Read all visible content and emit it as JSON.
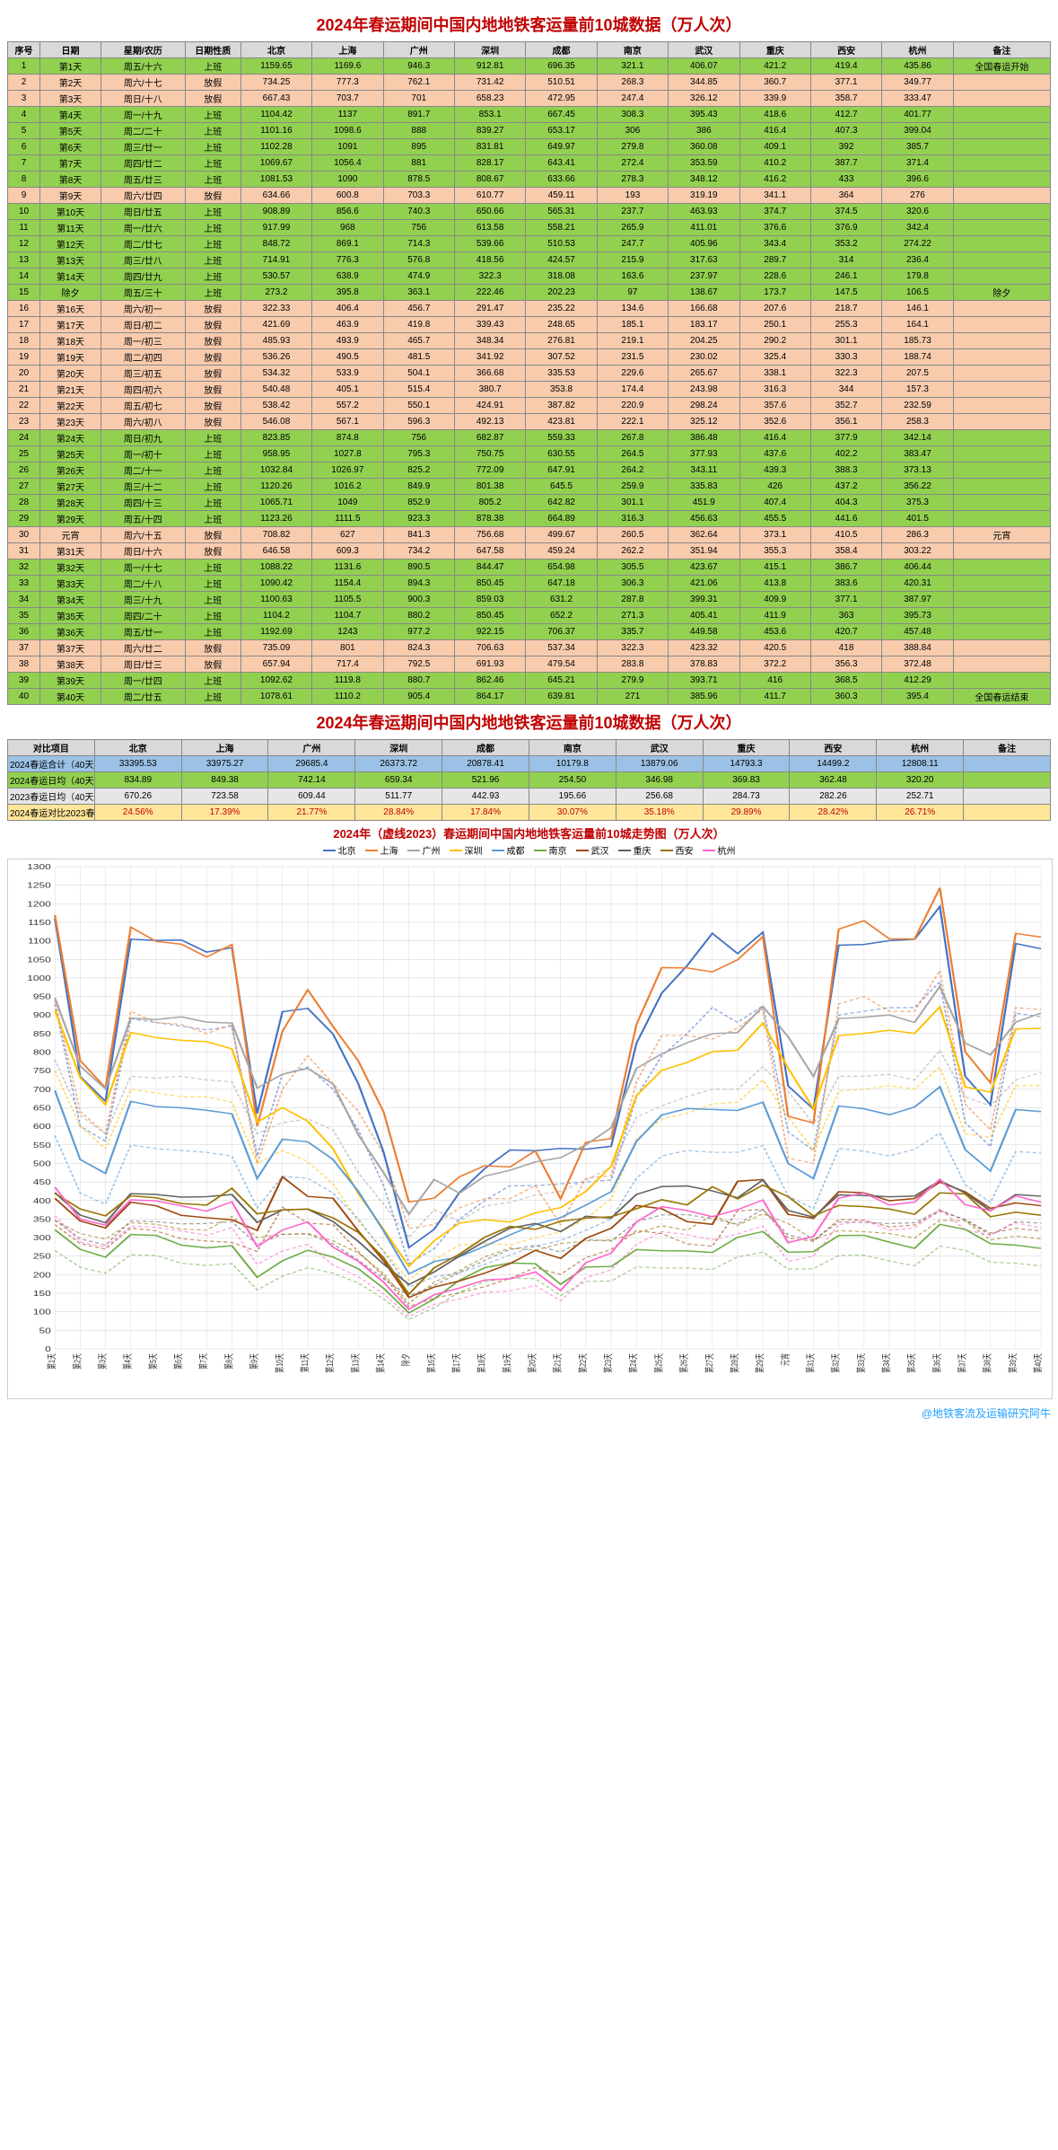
{
  "title_main": "2024年春运期间中国内地地铁客运量前10城数据（万人次）",
  "title_summary": "2024年春运期间中国内地地铁客运量前10城数据（万人次）",
  "chart_title": "2024年（虚线2023）春运期间中国内地地铁客运量前10城走势图（万人次）",
  "credit": "@地铁客流及运输研究阿牛",
  "headers": {
    "seq": "序号",
    "date": "日期",
    "week": "星期/农历",
    "type": "日期性质",
    "cities": [
      "北京",
      "上海",
      "广州",
      "深圳",
      "成都",
      "南京",
      "武汉",
      "重庆",
      "西安",
      "杭州"
    ],
    "note": "备注"
  },
  "row_colors": {
    "work": "row-green",
    "holiday": "row-pink",
    "total": "row-blue",
    "avg": "row-green",
    "avg23": "row-gray",
    "inc": "row-yellow"
  },
  "rows": [
    {
      "seq": 1,
      "date": "第1天",
      "week": "周五/十六",
      "type": "上班",
      "v": [
        1159.65,
        1169.6,
        946.3,
        912.81,
        696.35,
        321.1,
        406.07,
        421.2,
        419.4,
        435.86
      ],
      "note": "全国春运开始",
      "c": "work"
    },
    {
      "seq": 2,
      "date": "第2天",
      "week": "周六/十七",
      "type": "放假",
      "v": [
        734.25,
        777.3,
        762.1,
        731.42,
        510.51,
        268.3,
        344.85,
        360.7,
        377.1,
        349.77
      ],
      "c": "holiday"
    },
    {
      "seq": 3,
      "date": "第3天",
      "week": "周日/十八",
      "type": "放假",
      "v": [
        667.43,
        703.7,
        701,
        658.23,
        472.95,
        247.4,
        326.12,
        339.9,
        358.7,
        333.47
      ],
      "c": "holiday"
    },
    {
      "seq": 4,
      "date": "第4天",
      "week": "周一/十九",
      "type": "上班",
      "v": [
        1104.42,
        1137,
        891.7,
        853.1,
        667.45,
        308.3,
        395.43,
        418.6,
        412.7,
        401.77
      ],
      "c": "work"
    },
    {
      "seq": 5,
      "date": "第5天",
      "week": "周二/二十",
      "type": "上班",
      "v": [
        1101.16,
        1098.6,
        888.0,
        839.27,
        653.17,
        306,
        386,
        416.4,
        407.3,
        399.04
      ],
      "c": "work"
    },
    {
      "seq": 6,
      "date": "第6天",
      "week": "周三/廿一",
      "type": "上班",
      "v": [
        1102.28,
        1091,
        895,
        831.81,
        649.97,
        279.8,
        360.08,
        409.1,
        392,
        385.7
      ],
      "c": "work"
    },
    {
      "seq": 7,
      "date": "第7天",
      "week": "周四/廿二",
      "type": "上班",
      "v": [
        1069.67,
        1056.4,
        881,
        828.17,
        643.41,
        272.4,
        353.59,
        410.2,
        387.7,
        371.4
      ],
      "c": "work"
    },
    {
      "seq": 8,
      "date": "第8天",
      "week": "周五/廿三",
      "type": "上班",
      "v": [
        1081.53,
        1090,
        878.5,
        808.67,
        633.66,
        278.3,
        348.12,
        416.2,
        433,
        396.6
      ],
      "c": "work"
    },
    {
      "seq": 9,
      "date": "第9天",
      "week": "周六/廿四",
      "type": "放假",
      "v": [
        634.66,
        600.8,
        703.3,
        610.77,
        459.11,
        193,
        319.19,
        341.1,
        364,
        276
      ],
      "c": "holiday"
    },
    {
      "seq": 10,
      "date": "第10天",
      "week": "周日/廿五",
      "type": "上班",
      "v": [
        908.89,
        856.6,
        740.3,
        650.66,
        565.31,
        237.7,
        463.93,
        374.7,
        374.5,
        320.6
      ],
      "c": "work"
    },
    {
      "seq": 11,
      "date": "第11天",
      "week": "周一/廿六",
      "type": "上班",
      "v": [
        917.99,
        968,
        756,
        613.58,
        558.21,
        265.9,
        411.01,
        376.6,
        376.9,
        342.4
      ],
      "c": "work"
    },
    {
      "seq": 12,
      "date": "第12天",
      "week": "周二/廿七",
      "type": "上班",
      "v": [
        848.72,
        869.1,
        714.3,
        539.66,
        510.53,
        247.7,
        405.96,
        343.4,
        353.2,
        274.22
      ],
      "c": "work"
    },
    {
      "seq": 13,
      "date": "第13天",
      "week": "周三/廿八",
      "type": "上班",
      "v": [
        714.91,
        776.3,
        576.8,
        418.56,
        424.57,
        215.9,
        317.63,
        289.7,
        314,
        236.4
      ],
      "c": "work"
    },
    {
      "seq": 14,
      "date": "第14天",
      "week": "周四/廿九",
      "type": "上班",
      "v": [
        530.57,
        638.9,
        474.9,
        322.3,
        318.08,
        163.6,
        237.97,
        228.6,
        246.1,
        179.8
      ],
      "c": "work"
    },
    {
      "seq": 15,
      "date": "除夕",
      "week": "周五/三十",
      "type": "上班",
      "v": [
        273.2,
        395.8,
        363.1,
        222.46,
        202.23,
        97,
        138.67,
        173.7,
        147.5,
        106.5
      ],
      "note": "除夕",
      "c": "work"
    },
    {
      "seq": 16,
      "date": "第16天",
      "week": "周六/初一",
      "type": "放假",
      "v": [
        322.33,
        406.4,
        456.7,
        291.47,
        235.22,
        134.6,
        166.68,
        207.6,
        218.7,
        146.1
      ],
      "c": "holiday"
    },
    {
      "seq": 17,
      "date": "第17天",
      "week": "周日/初二",
      "type": "放假",
      "v": [
        421.69,
        463.9,
        419.8,
        339.43,
        248.65,
        185.1,
        183.17,
        250.1,
        255.3,
        164.1
      ],
      "c": "holiday"
    },
    {
      "seq": 18,
      "date": "第18天",
      "week": "周一/初三",
      "type": "放假",
      "v": [
        485.93,
        493.9,
        465.7,
        348.34,
        276.81,
        219.1,
        204.25,
        290.2,
        301.1,
        185.73
      ],
      "c": "holiday"
    },
    {
      "seq": 19,
      "date": "第19天",
      "week": "周二/初四",
      "type": "放假",
      "v": [
        536.26,
        490.5,
        481.5,
        341.92,
        307.52,
        231.5,
        230.02,
        325.4,
        330.3,
        188.74
      ],
      "c": "holiday"
    },
    {
      "seq": 20,
      "date": "第20天",
      "week": "周三/初五",
      "type": "放假",
      "v": [
        534.32,
        533.9,
        504.1,
        366.68,
        335.53,
        229.6,
        265.67,
        338.1,
        322.3,
        207.5
      ],
      "c": "holiday"
    },
    {
      "seq": 21,
      "date": "第21天",
      "week": "周四/初六",
      "type": "放假",
      "v": [
        540.48,
        405.1,
        515.4,
        380.7,
        353.8,
        174.4,
        243.98,
        316.3,
        344,
        157.3
      ],
      "c": "holiday"
    },
    {
      "seq": 22,
      "date": "第22天",
      "week": "周五/初七",
      "type": "放假",
      "v": [
        538.42,
        557.2,
        550.1,
        424.91,
        387.82,
        220.9,
        298.24,
        357.6,
        352.7,
        232.59
      ],
      "c": "holiday"
    },
    {
      "seq": 23,
      "date": "第23天",
      "week": "周六/初八",
      "type": "放假",
      "v": [
        546.08,
        567.1,
        596.3,
        492.13,
        423.81,
        222.1,
        325.12,
        352.6,
        356.1,
        258.3
      ],
      "c": "holiday"
    },
    {
      "seq": 24,
      "date": "第24天",
      "week": "周日/初九",
      "type": "上班",
      "v": [
        823.85,
        874.8,
        756,
        682.87,
        559.33,
        267.8,
        386.48,
        416.4,
        377.9,
        342.14
      ],
      "c": "work"
    },
    {
      "seq": 25,
      "date": "第25天",
      "week": "周一/初十",
      "type": "上班",
      "v": [
        958.95,
        1027.8,
        795.3,
        750.75,
        630.55,
        264.5,
        377.93,
        437.6,
        402.2,
        383.47
      ],
      "c": "work"
    },
    {
      "seq": 26,
      "date": "第26天",
      "week": "周二/十一",
      "type": "上班",
      "v": [
        1032.84,
        1026.97,
        825.2,
        772.09,
        647.91,
        264.2,
        343.11,
        439.3,
        388.3,
        373.13
      ],
      "c": "work"
    },
    {
      "seq": 27,
      "date": "第27天",
      "week": "周三/十二",
      "type": "上班",
      "v": [
        1120.26,
        1016.2,
        849.9,
        801.38,
        645.5,
        259.9,
        335.83,
        426,
        437.2,
        356.22
      ],
      "c": "work"
    },
    {
      "seq": 28,
      "date": "第28天",
      "week": "周四/十三",
      "type": "上班",
      "v": [
        1065.71,
        1049,
        852.9,
        805.2,
        642.82,
        301.1,
        451.9,
        407.4,
        404.3,
        375.3
      ],
      "c": "work"
    },
    {
      "seq": 29,
      "date": "第29天",
      "week": "周五/十四",
      "type": "上班",
      "v": [
        1123.26,
        1111.5,
        923.3,
        878.38,
        664.89,
        316.3,
        456.63,
        455.5,
        441.6,
        401.5
      ],
      "c": "work"
    },
    {
      "seq": 30,
      "date": "元宵",
      "week": "周六/十五",
      "type": "放假",
      "v": [
        708.82,
        627,
        841.3,
        756.68,
        499.67,
        260.5,
        362.64,
        373.1,
        410.5,
        286.3
      ],
      "note": "元宵",
      "c": "holiday"
    },
    {
      "seq": 31,
      "date": "第31天",
      "week": "周日/十六",
      "type": "放假",
      "v": [
        646.58,
        609.3,
        734.2,
        647.58,
        459.24,
        262.2,
        351.94,
        355.3,
        358.4,
        303.22
      ],
      "c": "holiday"
    },
    {
      "seq": 32,
      "date": "第32天",
      "week": "周一/十七",
      "type": "上班",
      "v": [
        1088.22,
        1131.6,
        890.5,
        844.47,
        654.98,
        305.5,
        423.67,
        415.1,
        386.7,
        406.44
      ],
      "c": "work"
    },
    {
      "seq": 33,
      "date": "第33天",
      "week": "周二/十八",
      "type": "上班",
      "v": [
        1090.42,
        1154.4,
        894.3,
        850.45,
        647.18,
        306.3,
        421.06,
        413.8,
        383.6,
        420.31
      ],
      "c": "work"
    },
    {
      "seq": 34,
      "date": "第34天",
      "week": "周三/十九",
      "type": "上班",
      "v": [
        1100.63,
        1105.5,
        900.3,
        859.03,
        631.2,
        287.8,
        399.31,
        409.9,
        377.1,
        387.97
      ],
      "c": "work"
    },
    {
      "seq": 35,
      "date": "第35天",
      "week": "周四/二十",
      "type": "上班",
      "v": [
        1104.2,
        1104.7,
        880.2,
        850.45,
        652.2,
        271.3,
        405.41,
        411.9,
        363,
        395.73
      ],
      "c": "work"
    },
    {
      "seq": 36,
      "date": "第36天",
      "week": "周五/廿一",
      "type": "上班",
      "v": [
        1192.69,
        1243,
        977.2,
        922.15,
        706.37,
        335.7,
        449.58,
        453.6,
        420.7,
        457.48
      ],
      "c": "work"
    },
    {
      "seq": 37,
      "date": "第37天",
      "week": "周六/廿二",
      "type": "放假",
      "v": [
        735.09,
        801,
        824.3,
        706.63,
        537.34,
        322.3,
        423.32,
        420.5,
        418,
        388.84
      ],
      "c": "holiday"
    },
    {
      "seq": 38,
      "date": "第38天",
      "week": "周日/廿三",
      "type": "放假",
      "v": [
        657.94,
        717.4,
        792.5,
        691.93,
        479.54,
        283.8,
        378.83,
        372.2,
        356.3,
        372.48
      ],
      "c": "holiday"
    },
    {
      "seq": 39,
      "date": "第39天",
      "week": "周一/廿四",
      "type": "上班",
      "v": [
        1092.62,
        1119.8,
        880.7,
        862.46,
        645.21,
        279.9,
        393.71,
        416,
        368.5,
        412.29
      ],
      "c": "work"
    },
    {
      "seq": 40,
      "date": "第40天",
      "week": "周二/廿五",
      "type": "上班",
      "v": [
        1078.61,
        1110.2,
        905.4,
        864.17,
        639.81,
        271,
        385.96,
        411.7,
        360.3,
        395.4
      ],
      "note": "全国春运结束",
      "c": "work"
    }
  ],
  "summary": {
    "label_col": "对比项目",
    "rows": [
      {
        "label": "2024春运合计（40天）",
        "v": [
          "33395.53",
          "33975.27",
          "29685.4",
          "26373.72",
          "20878.41",
          "10179.8",
          "13879.06",
          "14793.3",
          "14499.2",
          "12808.11"
        ],
        "c": "total"
      },
      {
        "label": "2024春运日均（40天）",
        "v": [
          "834.89",
          "849.38",
          "742.14",
          "659.34",
          "521.96",
          "254.50",
          "346.98",
          "369.83",
          "362.48",
          "320.20"
        ],
        "c": "avg"
      },
      {
        "label": "2023春运日均（40天）",
        "v": [
          "670.26",
          "723.58",
          "609.44",
          "511.77",
          "442.93",
          "195.66",
          "256.68",
          "284.73",
          "282.26",
          "252.71"
        ],
        "c": "avg23"
      },
      {
        "label": "2024春运对比2023春运增幅（40天）",
        "v": [
          "24.56%",
          "17.39%",
          "21.77%",
          "28.84%",
          "17.84%",
          "30.07%",
          "35.18%",
          "29.89%",
          "28.42%",
          "26.71%"
        ],
        "c": "inc"
      }
    ]
  },
  "chart": {
    "ylim": [
      0,
      1300
    ],
    "ytick_step": 50,
    "grid_color": "#d0d0d0",
    "background": "#ffffff",
    "line_width": 1.5,
    "colors": {
      "北京": "#4472c4",
      "上海": "#ed7d31",
      "广州": "#a5a5a5",
      "深圳": "#ffc000",
      "成都": "#5b9bd5",
      "南京": "#70ad47",
      "武汉": "#9e480e",
      "重庆": "#636363",
      "西安": "#997300",
      "杭州": "#ff66cc"
    },
    "series_2023": {
      "北京": [
        930,
        600,
        560,
        890,
        880,
        870,
        860,
        870,
        520,
        740,
        760,
        700,
        590,
        440,
        230,
        270,
        350,
        400,
        440,
        440,
        445,
        450,
        455,
        680,
        790,
        850,
        920,
        880,
        925,
        585,
        535,
        900,
        910,
        920,
        920,
        990,
        610,
        545,
        905,
        895
      ],
      "上海": [
        940,
        640,
        580,
        910,
        880,
        875,
        850,
        875,
        500,
        700,
        790,
        715,
        640,
        525,
        325,
        335,
        380,
        405,
        405,
        440,
        335,
        460,
        467,
        720,
        845,
        845,
        835,
        865,
        915,
        515,
        500,
        930,
        950,
        910,
        910,
        1020,
        660,
        590,
        920,
        915
      ],
      "广州": [
        780,
        630,
        580,
        735,
        730,
        735,
        725,
        720,
        580,
        610,
        620,
        590,
        475,
        390,
        300,
        375,
        345,
        385,
        395,
        415,
        425,
        455,
        490,
        625,
        655,
        680,
        700,
        700,
        760,
        695,
        605,
        735,
        735,
        740,
        725,
        805,
        680,
        655,
        725,
        745
      ],
      "深圳": [
        750,
        600,
        540,
        700,
        690,
        680,
        680,
        665,
        500,
        535,
        505,
        445,
        345,
        265,
        185,
        240,
        280,
        285,
        280,
        300,
        315,
        350,
        405,
        565,
        620,
        635,
        660,
        665,
        725,
        625,
        535,
        695,
        700,
        710,
        700,
        760,
        580,
        570,
        710,
        710
      ],
      "成都": [
        575,
        420,
        390,
        550,
        540,
        535,
        530,
        520,
        380,
        465,
        460,
        420,
        350,
        262,
        167,
        194,
        205,
        228,
        253,
        277,
        292,
        320,
        350,
        460,
        520,
        535,
        530,
        530,
        548,
        412,
        378,
        540,
        533,
        520,
        538,
        582,
        443,
        395,
        532,
        528
      ],
      "南京": [
        265,
        220,
        204,
        254,
        252,
        231,
        225,
        230,
        159,
        196,
        219,
        204,
        178,
        135,
        80,
        111,
        153,
        181,
        191,
        189,
        144,
        182,
        183,
        221,
        218,
        218,
        214,
        248,
        261,
        215,
        216,
        252,
        253,
        237,
        224,
        277,
        266,
        234,
        231,
        224
      ],
      "武汉": [
        335,
        284,
        269,
        326,
        318,
        297,
        291,
        287,
        263,
        382,
        339,
        335,
        262,
        196,
        114,
        137,
        151,
        168,
        190,
        219,
        201,
        246,
        268,
        319,
        311,
        283,
        277,
        372,
        376,
        299,
        290,
        349,
        347,
        329,
        334,
        371,
        349,
        312,
        325,
        318
      ],
      "重庆": [
        347,
        297,
        280,
        345,
        343,
        337,
        338,
        343,
        281,
        309,
        310,
        283,
        239,
        189,
        143,
        171,
        206,
        239,
        268,
        279,
        261,
        295,
        291,
        343,
        361,
        362,
        351,
        336,
        376,
        307,
        293,
        342,
        341,
        338,
        340,
        374,
        347,
        307,
        343,
        339
      ],
      "西安": [
        346,
        311,
        296,
        340,
        336,
        323,
        320,
        357,
        300,
        309,
        311,
        291,
        259,
        203,
        122,
        180,
        211,
        248,
        272,
        266,
        284,
        291,
        294,
        312,
        332,
        320,
        360,
        333,
        364,
        338,
        295,
        319,
        316,
        311,
        299,
        347,
        345,
        294,
        304,
        297
      ],
      "杭州": [
        359,
        288,
        275,
        331,
        328,
        318,
        306,
        327,
        228,
        264,
        282,
        226,
        195,
        148,
        88,
        120,
        135,
        153,
        156,
        171,
        130,
        192,
        213,
        282,
        316,
        308,
        294,
        310,
        331,
        236,
        250,
        335,
        347,
        320,
        326,
        377,
        321,
        307,
        340,
        326
      ]
    }
  }
}
